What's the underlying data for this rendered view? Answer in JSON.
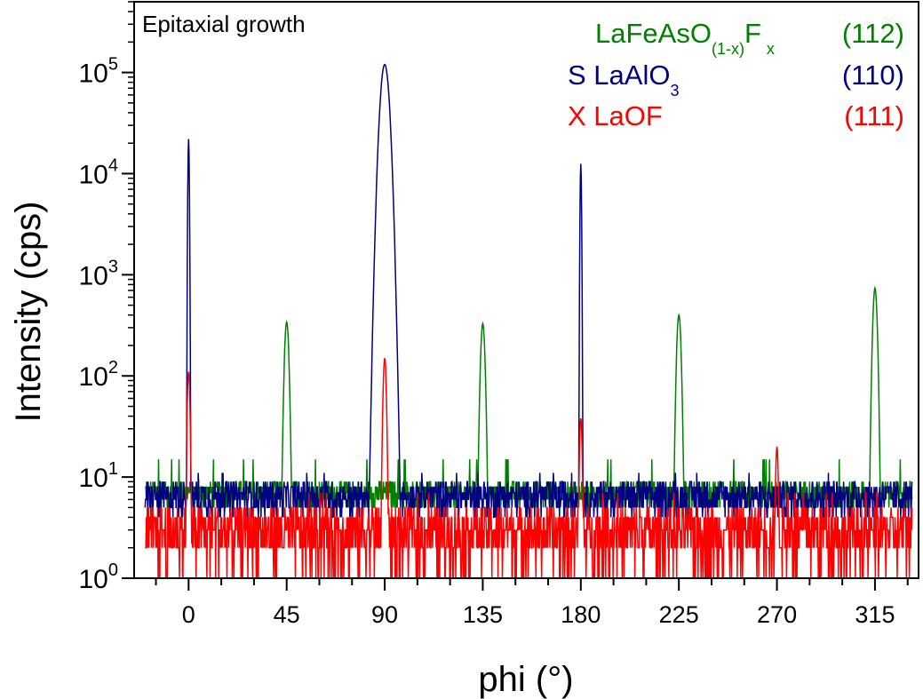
{
  "chart_data": {
    "type": "line",
    "annotation": "Epitaxial growth",
    "xlabel": "phi (°)",
    "ylabel": "Intensity (cps)",
    "yscale": "log",
    "xlim": [
      -25,
      335
    ],
    "ylim": [
      1,
      500000
    ],
    "xticks": [
      0,
      45,
      90,
      135,
      180,
      225,
      270,
      315
    ],
    "xtick_labels": [
      "0",
      "45",
      "90",
      "135",
      "180",
      "225",
      "270",
      "315"
    ],
    "xminor_step": 15,
    "yticks": [
      1,
      10,
      100,
      1000,
      10000,
      100000
    ],
    "ytick_bases": [
      "10",
      "10",
      "10",
      "10",
      "10",
      "10"
    ],
    "ytick_exponents": [
      "0",
      "1",
      "2",
      "3",
      "4",
      "5"
    ],
    "legend_position": "top-right",
    "legend": [
      {
        "prefix": "",
        "formula": "LaFeAsO",
        "sub1": "(1-x)",
        "mid": "F",
        "sub2": "x",
        "hkl": "(112)",
        "color": "#008000"
      },
      {
        "prefix": "S ",
        "formula": "LaAlO",
        "sub1": "3",
        "mid": "",
        "sub2": "",
        "hkl": "(110)",
        "color": "#000080"
      },
      {
        "prefix": "X ",
        "formula": "LaOF",
        "sub1": "",
        "mid": "",
        "sub2": "",
        "hkl": "(111)",
        "color": "#ff0000"
      }
    ],
    "series": [
      {
        "name": "LaFeAsO(1-x)Fx (112)",
        "color": "#008000",
        "x_range": [
          -20,
          332
        ],
        "noise": {
          "min": 5,
          "max": 9,
          "spike": 15
        },
        "peaks": [
          {
            "x": 45,
            "height": 340,
            "width": 0.8
          },
          {
            "x": 135,
            "height": 330,
            "width": 0.8
          },
          {
            "x": 225,
            "height": 400,
            "width": 0.8
          },
          {
            "x": 315,
            "height": 740,
            "width": 0.8
          }
        ]
      },
      {
        "name": "S LaAlO3 (110)",
        "color": "#000080",
        "x_range": [
          -20,
          332
        ],
        "noise": {
          "min": 4,
          "max": 9,
          "spike": 11
        },
        "peaks": [
          {
            "x": 0,
            "height": 22000,
            "width": 0.25
          },
          {
            "x": 90,
            "height": 120000,
            "width": 1.6
          },
          {
            "x": 180,
            "height": 12500,
            "width": 0.25
          }
        ]
      },
      {
        "name": "X LaOF (111)",
        "color": "#ff0000",
        "x_range": [
          -20,
          332
        ],
        "noise": {
          "min": 1,
          "max": 5,
          "spike": 7
        },
        "peaks": [
          {
            "x": 0,
            "height": 110,
            "width": 0.5
          },
          {
            "x": 90,
            "height": 150,
            "width": 0.6
          },
          {
            "x": 180,
            "height": 38,
            "width": 0.5
          },
          {
            "x": 270,
            "height": 20,
            "width": 0.5
          }
        ]
      }
    ]
  }
}
